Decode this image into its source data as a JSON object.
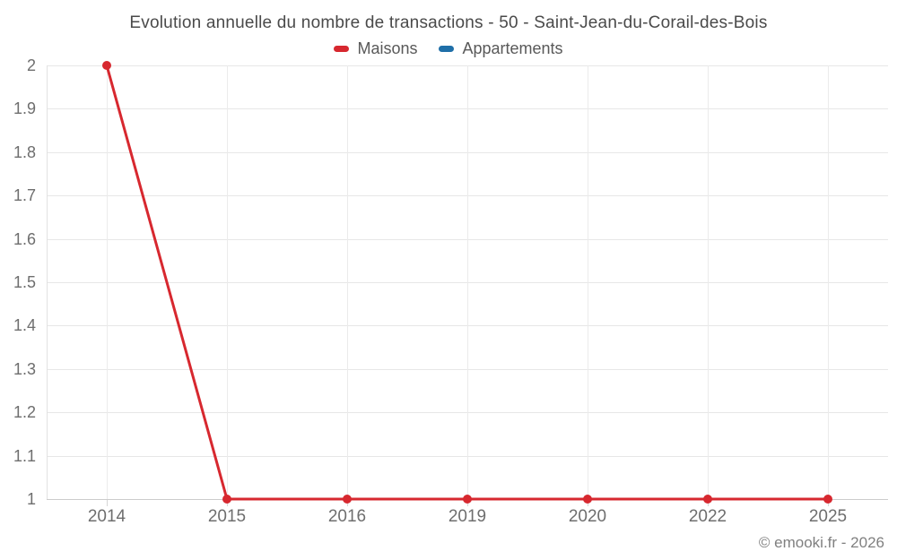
{
  "title": "Evolution annuelle du nombre de transactions - 50 - Saint-Jean-du-Corail-des-Bois",
  "legend": [
    {
      "label": "Maisons",
      "color": "#d7282f"
    },
    {
      "label": "Appartements",
      "color": "#1f6fa8"
    }
  ],
  "footer": {
    "credit": "© emooki.fr - 2026"
  },
  "chart_data": {
    "type": "line",
    "title": "Evolution annuelle du nombre de transactions - 50 - Saint-Jean-du-Corail-des-Bois",
    "categories": [
      "2014",
      "2015",
      "2016",
      "2019",
      "2020",
      "2022",
      "2025"
    ],
    "series": [
      {
        "name": "Maisons",
        "color": "#d7282f",
        "values": [
          2,
          1,
          1,
          1,
          1,
          1,
          1
        ]
      },
      {
        "name": "Appartements",
        "color": "#1f6fa8",
        "values": []
      }
    ],
    "xlabel": "",
    "ylabel": "",
    "ylim": [
      1,
      2
    ],
    "ytick_step": 0.1,
    "yticks": [
      "2",
      "1.9",
      "1.8",
      "1.7",
      "1.6",
      "1.5",
      "1.4",
      "1.3",
      "1.2",
      "1.1",
      "1"
    ],
    "grid": true,
    "legend_position": "top",
    "marker": "circle",
    "annotations": []
  }
}
